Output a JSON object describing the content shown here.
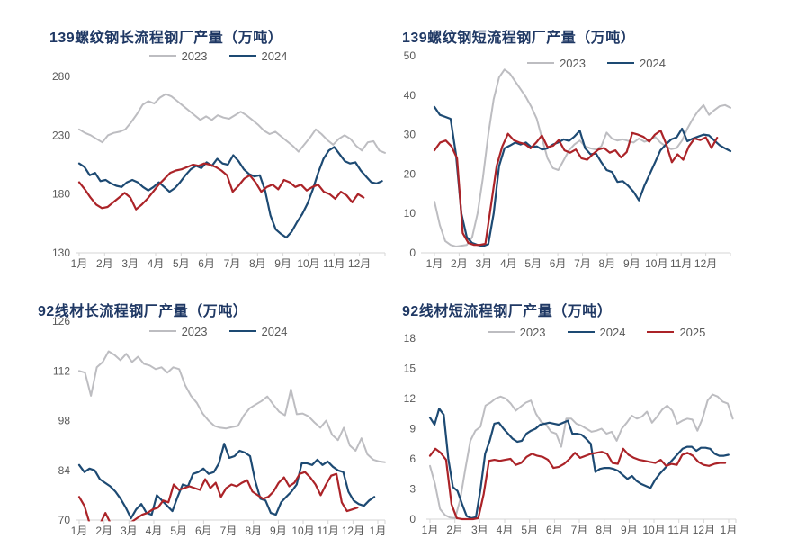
{
  "page": {
    "background": "#ffffff"
  },
  "colors": {
    "series_2023": "#bdbdc1",
    "series_2024": "#1d4a73",
    "series_2025": "#ab2328",
    "title_text": "#1f3864",
    "axis_text": "#595959",
    "axis_line": "#d6d6d6"
  },
  "chart_data": [
    {
      "type": "line",
      "title": "139螺纹钢长流程钢厂产量（万吨）",
      "ylim": [
        130,
        280
      ],
      "yticks": [
        280,
        230,
        180,
        130
      ],
      "x_tick_labels": [
        "1月",
        "2月",
        "3月",
        "4月",
        "5月",
        "6月",
        "7月",
        "8月",
        "9月",
        "10月",
        "11月",
        "12月"
      ],
      "grid": false,
      "legend_position": "top-center",
      "series": [
        {
          "name": "2023",
          "color": "series_2023",
          "in_legend": true,
          "end_frac": 1.0,
          "values": [
            235,
            232,
            230,
            227,
            224,
            230,
            232,
            233,
            235,
            241,
            248,
            256,
            259,
            257,
            262,
            265,
            263,
            259,
            255,
            251,
            247,
            243,
            246,
            243,
            247,
            245,
            244,
            247,
            250,
            247,
            243,
            239,
            234,
            231,
            233,
            229,
            225,
            221,
            216,
            222,
            228,
            235,
            231,
            226,
            222,
            227,
            230,
            227,
            221,
            217,
            224,
            225,
            217,
            215
          ]
        },
        {
          "name": "2024",
          "color": "series_2024",
          "in_legend": true,
          "end_frac": 0.99,
          "values": [
            206,
            203,
            196,
            198,
            191,
            192,
            189,
            187,
            186,
            190,
            192,
            190,
            186,
            183,
            186,
            190,
            186,
            182,
            185,
            190,
            196,
            201,
            204,
            202,
            207,
            204,
            210,
            206,
            205,
            213,
            208,
            201,
            197,
            195,
            196,
            183,
            162,
            150,
            146,
            143,
            148,
            156,
            163,
            172,
            184,
            198,
            210,
            217,
            220,
            214,
            208,
            206,
            207,
            200,
            195,
            190,
            189,
            191
          ]
        },
        {
          "name": "2025",
          "color": "series_2025",
          "in_legend": false,
          "end_frac": 0.93,
          "values": [
            190,
            184,
            177,
            171,
            168,
            169,
            173,
            177,
            181,
            177,
            167,
            171,
            176,
            182,
            188,
            193,
            198,
            200,
            201,
            203,
            205,
            204,
            206,
            205,
            203,
            200,
            196,
            182,
            187,
            193,
            196,
            190,
            182,
            186,
            188,
            184,
            192,
            190,
            186,
            188,
            183,
            186,
            188,
            182,
            180,
            176,
            182,
            179,
            173,
            180,
            177
          ]
        }
      ]
    },
    {
      "type": "line",
      "title": "139螺纹钢短流程钢厂产量（万吨）",
      "ylim": [
        0,
        50
      ],
      "yticks": [
        50,
        40,
        30,
        20,
        10,
        0
      ],
      "x_tick_labels": [
        "1月",
        "2月",
        "3月",
        "4月",
        "5月",
        "6月",
        "7月",
        "8月",
        "9月",
        "10月",
        "11月",
        "12月"
      ],
      "grid": false,
      "legend_position": "top-center",
      "series": [
        {
          "name": "2023",
          "color": "series_2023",
          "in_legend": true,
          "end_frac": 1.0,
          "values": [
            13,
            7,
            3,
            2,
            1.6,
            1.8,
            2,
            4,
            10,
            19,
            30,
            39,
            44.5,
            46.5,
            45.5,
            43.5,
            41.5,
            39.5,
            37,
            34,
            29,
            24,
            21.5,
            21,
            23.5,
            26,
            27.5,
            28.5,
            27,
            26.5,
            26.2,
            27,
            30.5,
            29,
            28.5,
            28.8,
            28.4,
            28,
            29,
            28.2,
            28.6,
            29.4,
            28,
            27,
            26.3,
            26.6,
            28.5,
            31.5,
            34,
            36,
            37.5,
            35,
            36.2,
            37.2,
            37.5,
            36.8
          ]
        },
        {
          "name": "2024",
          "color": "series_2024",
          "in_legend": true,
          "end_frac": 1.0,
          "values": [
            37,
            35,
            34.5,
            34,
            25,
            10,
            4,
            2.5,
            2,
            1.7,
            2.2,
            10,
            22,
            26.5,
            27.2,
            28,
            27.5,
            28,
            26.8,
            27,
            26.2,
            26.5,
            27.5,
            28,
            28.8,
            28.4,
            29.5,
            31,
            26.5,
            25,
            25.2,
            23,
            21,
            20.5,
            18,
            18.2,
            17,
            15.5,
            13.3,
            17,
            20,
            23,
            26,
            27.5,
            28.8,
            29.3,
            31.5,
            28.3,
            29,
            29.5,
            30,
            29.8,
            28.5,
            27.3,
            26.5,
            25.8
          ]
        },
        {
          "name": "2025",
          "color": "series_2025",
          "in_legend": false,
          "end_frac": 0.955,
          "values": [
            26,
            28,
            28.5,
            27,
            24,
            5,
            2.5,
            2,
            2,
            2.3,
            12,
            22,
            27,
            30.2,
            28.6,
            28,
            27.6,
            26.5,
            28,
            29.8,
            26.8,
            27.2,
            28.6,
            26,
            25.4,
            26.2,
            24,
            23.6,
            25,
            26.2,
            26.6,
            25.4,
            26,
            24.2,
            25.6,
            30.4,
            30,
            29.4,
            28.2,
            30,
            31,
            27.6,
            23,
            25,
            23.6,
            27,
            29,
            28.6,
            29.3,
            26.6,
            29.2
          ]
        }
      ]
    },
    {
      "type": "line",
      "title": "92线材长流程钢厂产量（万吨）",
      "ylim": [
        70,
        126
      ],
      "yticks": [
        126,
        112,
        98,
        84,
        70
      ],
      "x_tick_labels": [
        "1月",
        "2月",
        "3月",
        "4月",
        "5月",
        "6月",
        "7月",
        "8月",
        "9月",
        "10月",
        "11月",
        "12月",
        "1月"
      ],
      "grid": false,
      "legend_position": "top-center",
      "series": [
        {
          "name": "2023",
          "color": "series_2023",
          "in_legend": true,
          "end_frac": 1.0,
          "values": [
            112,
            111.5,
            105,
            113,
            114.5,
            117.5,
            116.5,
            115,
            116.8,
            114.5,
            116,
            114,
            113.5,
            112.5,
            113,
            111.5,
            113,
            112.5,
            108,
            105,
            103,
            100,
            98,
            96.5,
            96,
            95.8,
            96.2,
            96.5,
            99.5,
            101.5,
            102.5,
            103.5,
            104.8,
            102.5,
            100.5,
            99.5,
            106.8,
            99.8,
            100,
            99.2,
            97.5,
            96,
            98,
            94,
            92.5,
            96,
            91,
            89.5,
            93,
            88.5,
            87,
            86.5,
            86.3
          ]
        },
        {
          "name": "2024",
          "color": "series_2024",
          "in_legend": true,
          "end_frac": 0.965,
          "values": [
            85.5,
            83.5,
            84.5,
            84,
            81.5,
            80.5,
            79.5,
            78,
            76,
            73.5,
            70.5,
            73,
            74.5,
            72,
            71.5,
            77,
            75.5,
            74,
            72.5,
            76.5,
            80,
            79.5,
            83,
            83.5,
            84.5,
            83,
            83.5,
            86,
            91.5,
            87.5,
            88,
            89.5,
            89,
            88,
            81,
            76,
            75.5,
            72,
            71.5,
            75,
            76.5,
            78,
            80,
            86,
            86,
            85.5,
            87,
            85.5,
            86.5,
            85,
            84,
            83.5,
            78,
            75.5,
            74.5,
            74,
            75.5,
            76.5
          ]
        },
        {
          "name": "2025",
          "color": "series_2025",
          "in_legend": false,
          "end_frac": 0.91,
          "values": [
            76.5,
            74,
            69,
            68,
            69,
            72,
            69,
            68,
            68.5,
            69,
            69.5,
            70.5,
            71.5,
            72,
            73,
            73.5,
            75.5,
            75,
            80,
            78.5,
            79,
            79.5,
            79,
            78.5,
            81.5,
            79,
            80.5,
            76.5,
            79,
            80,
            79.5,
            80.5,
            81.2,
            78,
            77,
            76,
            76.5,
            78,
            80.5,
            82,
            79.5,
            80.5,
            83,
            83.5,
            82,
            80,
            77,
            80,
            82.5,
            83,
            75,
            72.5,
            73,
            73.5
          ]
        }
      ]
    },
    {
      "type": "line",
      "title": "92线材短流程钢厂产量（万吨）",
      "ylim": [
        0,
        18
      ],
      "yticks": [
        18,
        15,
        12,
        9,
        6,
        3,
        0
      ],
      "x_tick_labels": [
        "1月",
        "2月",
        "3月",
        "4月",
        "5月",
        "6月",
        "7月",
        "8月",
        "9月",
        "10月",
        "11月",
        "12月",
        "1月"
      ],
      "grid": false,
      "legend_position": "top-center",
      "series": [
        {
          "name": "2023",
          "color": "series_2023",
          "in_legend": true,
          "end_frac": 0.99,
          "values": [
            5.3,
            3.5,
            1,
            0.4,
            0.15,
            0.1,
            2,
            5,
            7.8,
            8.8,
            9.2,
            11.3,
            11.6,
            12,
            12.2,
            12,
            11.5,
            10.8,
            11.2,
            11.6,
            11.8,
            10.5,
            9.7,
            9.4,
            8.7,
            8.5,
            7.2,
            10,
            10,
            9.5,
            9.3,
            9,
            8.7,
            8.8,
            9,
            8.5,
            8.7,
            7.8,
            9,
            9.6,
            10.3,
            10,
            10.2,
            10.7,
            9.6,
            10.2,
            10.9,
            11.3,
            10.8,
            9.5,
            9.8,
            10,
            9.9,
            8.8,
            10,
            11.8,
            12.4,
            12.2,
            11.7,
            11.5,
            10
          ]
        },
        {
          "name": "2024",
          "color": "series_2024",
          "in_legend": true,
          "end_frac": 0.976,
          "values": [
            10.1,
            9.4,
            11,
            10.4,
            6,
            3.2,
            2.8,
            1.5,
            0.3,
            0.1,
            0.2,
            3,
            6.5,
            7.8,
            9.5,
            9.6,
            9,
            8.5,
            8,
            7.7,
            7.8,
            8.5,
            8.8,
            9,
            9.4,
            9.5,
            9.6,
            9.5,
            9.4,
            9.6,
            9.8,
            8.5,
            8.5,
            8.4,
            8,
            7.5,
            4.7,
            5,
            5.1,
            5.1,
            5,
            4.8,
            4.4,
            4,
            4.3,
            3.8,
            3.5,
            3.3,
            3.1,
            3.9,
            4.5,
            5,
            5.5,
            6,
            6.5,
            7,
            7.2,
            7.2,
            6.8,
            7.1,
            7.1,
            7,
            6.5,
            6.3,
            6.3,
            6.4
          ]
        },
        {
          "name": "2025",
          "color": "series_2025",
          "in_legend": true,
          "end_frac": 0.965,
          "values": [
            6.3,
            7,
            6.6,
            5.9,
            1.5,
            0.1,
            0,
            0,
            0,
            0.1,
            2.5,
            5.8,
            5.9,
            5.8,
            5.9,
            6,
            5.4,
            5.6,
            6.2,
            6.5,
            6.3,
            6.2,
            5.9,
            5.1,
            5.2,
            5.5,
            6,
            6.6,
            6.1,
            6.3,
            6.5,
            6.6,
            6.7,
            6.5,
            5.6,
            5.5,
            7,
            6.4,
            6.1,
            5.9,
            5.8,
            5.7,
            5.6,
            5.9,
            5.3,
            5.5,
            5.4,
            6.4,
            6.6,
            6.3,
            5.7,
            5.4,
            5.3,
            5.5,
            5.6,
            5.6
          ]
        }
      ]
    }
  ]
}
